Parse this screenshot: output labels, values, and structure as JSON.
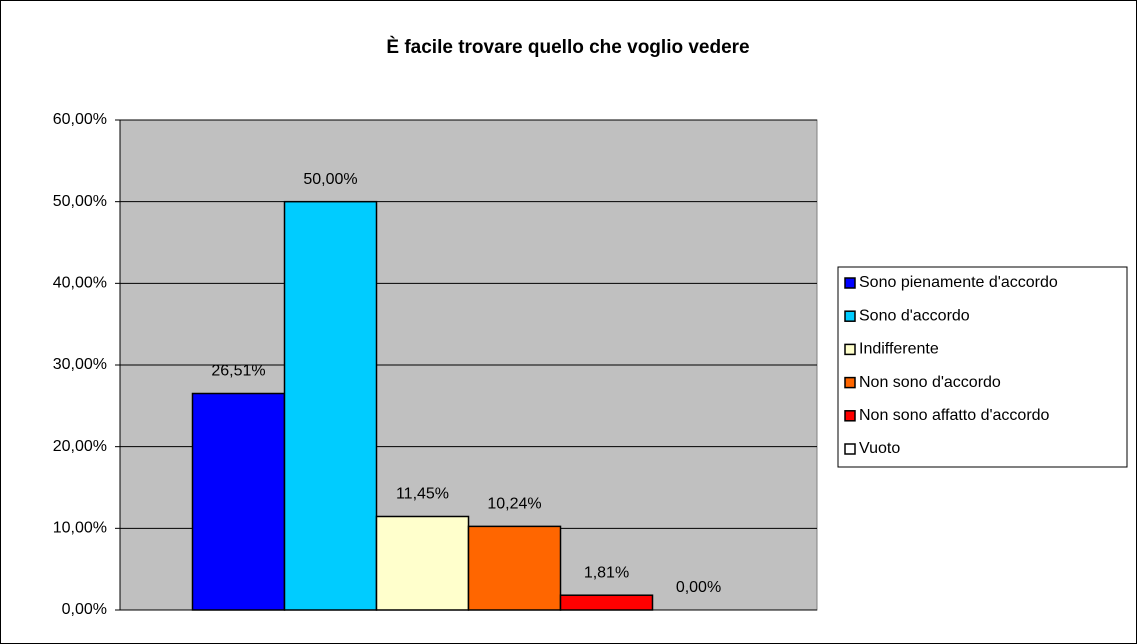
{
  "chart_data": {
    "type": "bar",
    "title": "È facile trovare quello che voglio vedere",
    "series": [
      {
        "name": "Sono pienamente d'accordo",
        "color": "#0000ff",
        "values": [
          26.51
        ],
        "value_labels": [
          "26,51%"
        ]
      },
      {
        "name": "Sono d'accordo",
        "color": "#00ccff",
        "values": [
          50
        ],
        "value_labels": [
          "50,00%"
        ]
      },
      {
        "name": "Indifferente",
        "color": "#ffffcc",
        "values": [
          11.45
        ],
        "value_labels": [
          "11,45%"
        ]
      },
      {
        "name": "Non sono d'accordo",
        "color": "#ff6600",
        "values": [
          10.24
        ],
        "value_labels": [
          "10,24%"
        ]
      },
      {
        "name": "Non sono affatto d'accordo",
        "color": "#ff0000",
        "values": [
          1.81
        ],
        "value_labels": [
          "1,81%"
        ]
      },
      {
        "name": "Vuoto",
        "color": "#ffffff",
        "values": [
          0
        ],
        "value_labels": [
          "0,00%"
        ]
      }
    ],
    "ylim": [
      0,
      60
    ],
    "yticks": [
      {
        "value": 0,
        "label": "0,00%"
      },
      {
        "value": 10,
        "label": "10,00%"
      },
      {
        "value": 20,
        "label": "20,00%"
      },
      {
        "value": 30,
        "label": "30,00%"
      },
      {
        "value": 40,
        "label": "40,00%"
      },
      {
        "value": 50,
        "label": "50,00%"
      },
      {
        "value": 60,
        "label": "60,00%"
      }
    ],
    "grid": true,
    "plot_background": "#c0c0c0",
    "legend": "right"
  }
}
